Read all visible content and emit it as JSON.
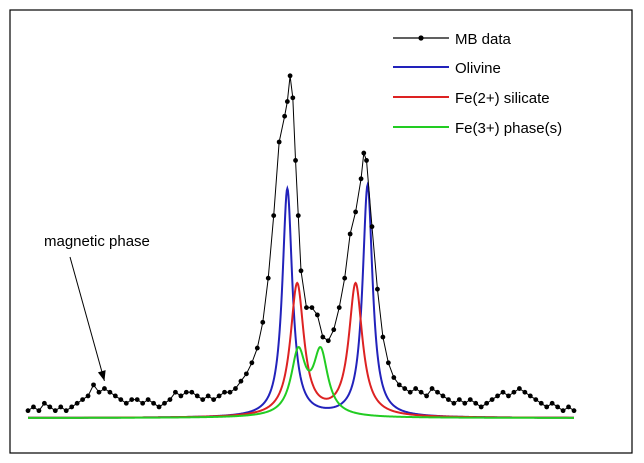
{
  "chart_data": {
    "type": "line",
    "title": "",
    "xlabel": "",
    "ylabel": "",
    "x_unit": "channel index (no axis labels shown)",
    "xlim": [
      0,
      100
    ],
    "ylim": [
      0,
      1
    ],
    "grid": false,
    "legend_position": "top-right",
    "series": [
      {
        "name": "MB data",
        "color": "#000000",
        "marker": "dot",
        "points": [
          [
            0,
            0.02
          ],
          [
            1,
            0.03
          ],
          [
            2,
            0.02
          ],
          [
            3,
            0.04
          ],
          [
            4,
            0.03
          ],
          [
            5,
            0.02
          ],
          [
            6,
            0.03
          ],
          [
            7,
            0.02
          ],
          [
            8,
            0.03
          ],
          [
            9,
            0.04
          ],
          [
            10,
            0.05
          ],
          [
            11,
            0.06
          ],
          [
            12,
            0.09
          ],
          [
            13,
            0.07
          ],
          [
            14,
            0.08
          ],
          [
            15,
            0.07
          ],
          [
            16,
            0.06
          ],
          [
            17,
            0.05
          ],
          [
            18,
            0.04
          ],
          [
            19,
            0.05
          ],
          [
            20,
            0.05
          ],
          [
            21,
            0.04
          ],
          [
            22,
            0.05
          ],
          [
            23,
            0.04
          ],
          [
            24,
            0.03
          ],
          [
            25,
            0.04
          ],
          [
            26,
            0.05
          ],
          [
            27,
            0.07
          ],
          [
            28,
            0.06
          ],
          [
            29,
            0.07
          ],
          [
            30,
            0.07
          ],
          [
            31,
            0.06
          ],
          [
            32,
            0.05
          ],
          [
            33,
            0.06
          ],
          [
            34,
            0.05
          ],
          [
            35,
            0.06
          ],
          [
            36,
            0.07
          ],
          [
            37,
            0.07
          ],
          [
            38,
            0.08
          ],
          [
            39,
            0.1
          ],
          [
            40,
            0.12
          ],
          [
            41,
            0.15
          ],
          [
            42,
            0.19
          ],
          [
            43,
            0.26
          ],
          [
            44,
            0.38
          ],
          [
            45,
            0.55
          ],
          [
            46,
            0.75
          ],
          [
            47,
            0.82
          ],
          [
            47.5,
            0.86
          ],
          [
            48,
            0.93
          ],
          [
            48.5,
            0.87
          ],
          [
            49,
            0.7
          ],
          [
            49.5,
            0.55
          ],
          [
            50,
            0.4
          ],
          [
            51,
            0.3
          ],
          [
            52,
            0.3
          ],
          [
            53,
            0.28
          ],
          [
            54,
            0.22
          ],
          [
            55,
            0.21
          ],
          [
            56,
            0.24
          ],
          [
            57,
            0.3
          ],
          [
            58,
            0.38
          ],
          [
            59,
            0.5
          ],
          [
            60,
            0.56
          ],
          [
            61,
            0.65
          ],
          [
            61.5,
            0.72
          ],
          [
            62,
            0.7
          ],
          [
            63,
            0.52
          ],
          [
            64,
            0.35
          ],
          [
            65,
            0.22
          ],
          [
            66,
            0.15
          ],
          [
            67,
            0.11
          ],
          [
            68,
            0.09
          ],
          [
            69,
            0.08
          ],
          [
            70,
            0.07
          ],
          [
            71,
            0.08
          ],
          [
            72,
            0.07
          ],
          [
            73,
            0.06
          ],
          [
            74,
            0.08
          ],
          [
            75,
            0.07
          ],
          [
            76,
            0.06
          ],
          [
            77,
            0.05
          ],
          [
            78,
            0.04
          ],
          [
            79,
            0.05
          ],
          [
            80,
            0.04
          ],
          [
            81,
            0.05
          ],
          [
            82,
            0.04
          ],
          [
            83,
            0.03
          ],
          [
            84,
            0.04
          ],
          [
            85,
            0.05
          ],
          [
            86,
            0.06
          ],
          [
            87,
            0.07
          ],
          [
            88,
            0.06
          ],
          [
            89,
            0.07
          ],
          [
            90,
            0.08
          ],
          [
            91,
            0.07
          ],
          [
            92,
            0.06
          ],
          [
            93,
            0.05
          ],
          [
            94,
            0.04
          ],
          [
            95,
            0.03
          ],
          [
            96,
            0.04
          ],
          [
            97,
            0.03
          ],
          [
            98,
            0.02
          ],
          [
            99,
            0.03
          ],
          [
            100,
            0.02
          ]
        ]
      },
      {
        "name": "Olivine",
        "color": "#2222bb",
        "peaks": [
          {
            "center": 47.5,
            "height": 0.62,
            "hwhm": 1.1
          },
          {
            "center": 62.2,
            "height": 0.63,
            "hwhm": 1.1
          }
        ]
      },
      {
        "name": "Fe(2+) silicate",
        "color": "#dd2222",
        "peaks": [
          {
            "center": 49.3,
            "height": 0.36,
            "hwhm": 1.5
          },
          {
            "center": 60.0,
            "height": 0.36,
            "hwhm": 1.5
          }
        ]
      },
      {
        "name": "Fe(3+) phase(s)",
        "color": "#22cc22",
        "peaks": [
          {
            "center": 49.5,
            "height": 0.17,
            "hwhm": 1.6
          },
          {
            "center": 53.6,
            "height": 0.17,
            "hwhm": 1.6
          }
        ]
      }
    ],
    "annotations": [
      {
        "text": "magnetic phase",
        "arrow_to": [
          14,
          0.09
        ]
      }
    ]
  }
}
